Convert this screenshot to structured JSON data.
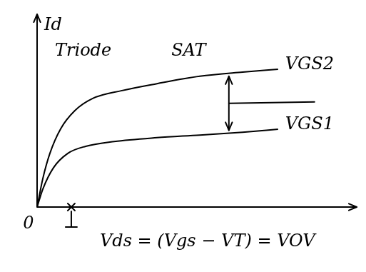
{
  "chart_data": {
    "type": "line",
    "y_label": "Id",
    "origin_label": "0",
    "region_labels": [
      "Triode",
      "SAT"
    ],
    "annotation": {
      "text": "Vds = (Vgs − VT) = VOV",
      "x": 1.07
    },
    "series": [
      {
        "name": "VGS2",
        "color": "#000000",
        "x": [
          0,
          0.18,
          0.4,
          0.74,
          1.18,
          1.74,
          2.63,
          3.75,
          5.09,
          6.43,
          7.54
        ],
        "values": [
          0,
          0.89,
          1.67,
          2.44,
          3.0,
          3.38,
          3.62,
          3.84,
          4.07,
          4.2,
          4.29
        ]
      },
      {
        "name": "VGS1",
        "color": "#000000",
        "x": [
          0,
          0.18,
          0.51,
          0.96,
          1.52,
          2.41,
          3.75,
          5.09,
          6.43,
          7.54
        ],
        "values": [
          0,
          0.56,
          1.22,
          1.67,
          1.89,
          2.04,
          2.16,
          2.24,
          2.33,
          2.42
        ]
      }
    ],
    "xlim": [
      0,
      10
    ],
    "ylim": [
      0,
      6
    ],
    "tick_labels": false,
    "grid": false
  }
}
